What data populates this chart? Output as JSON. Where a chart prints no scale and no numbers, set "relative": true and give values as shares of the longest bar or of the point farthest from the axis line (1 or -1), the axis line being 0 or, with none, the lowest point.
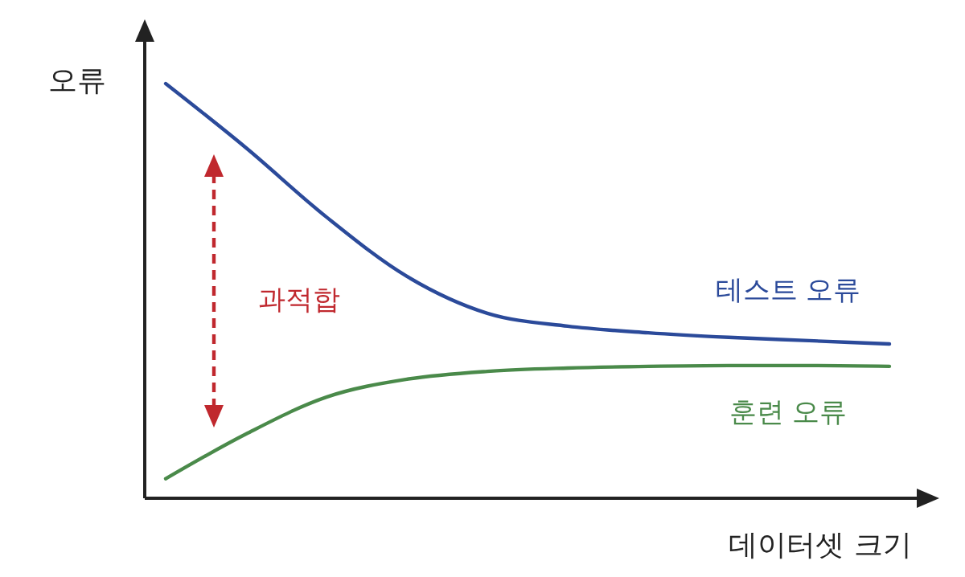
{
  "chart_data": {
    "type": "line",
    "relative": true,
    "xlabel": "데이터셋 크기",
    "ylabel": "오류",
    "annotations": [
      "과적합"
    ],
    "categories": [
      null,
      null,
      null,
      null,
      null,
      null,
      null,
      null,
      null,
      null
    ],
    "series": [
      {
        "name": "테스트 오류",
        "color": "#2b4a9a",
        "values": [
          1,
          0.845,
          0.678,
          0.535,
          0.446,
          0.415,
          0.399,
          0.388,
          0.38,
          0.372
        ]
      },
      {
        "name": "훈련 오류",
        "color": "#4a8a4a",
        "values": [
          0.047,
          0.155,
          0.244,
          0.287,
          0.306,
          0.314,
          0.318,
          0.32,
          0.32,
          0.318
        ]
      }
    ],
    "marker": "none",
    "line_style": "solid"
  }
}
